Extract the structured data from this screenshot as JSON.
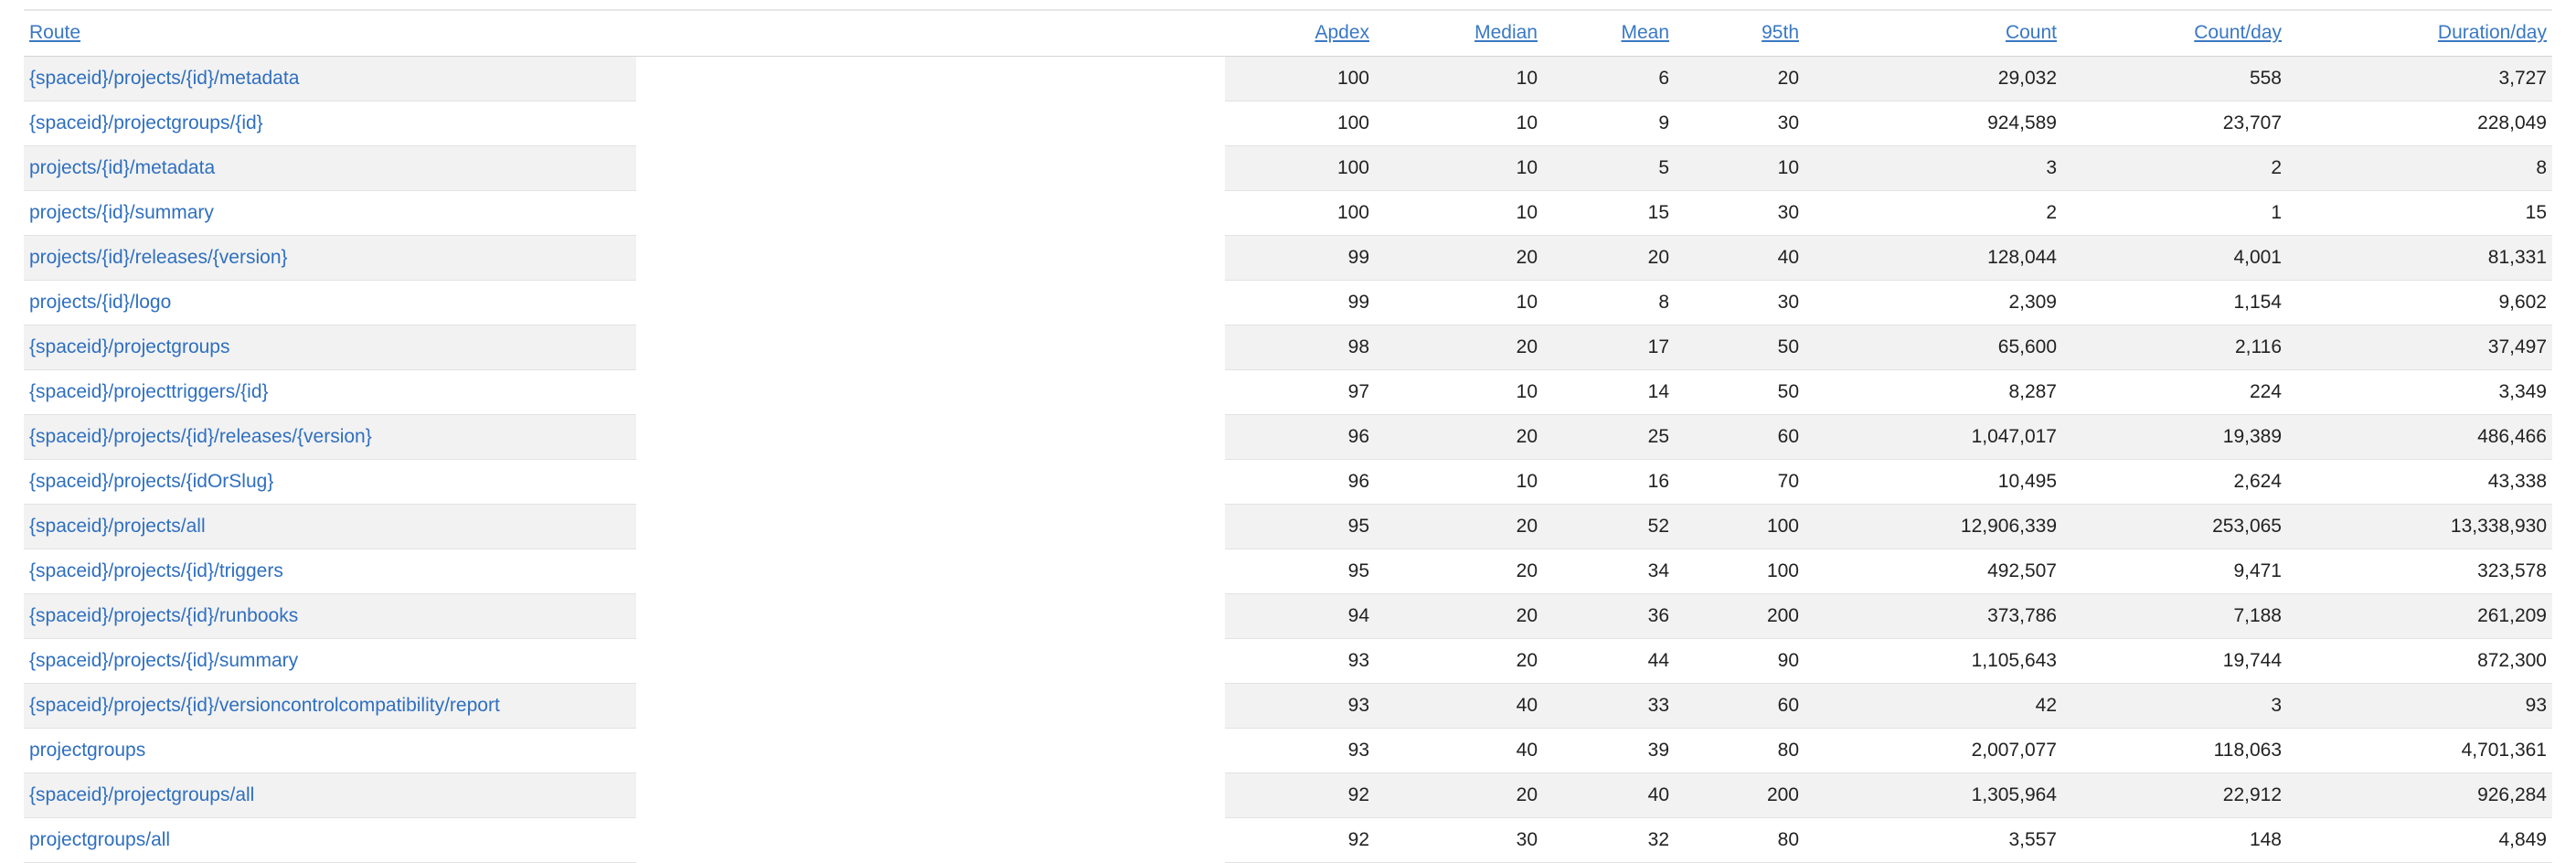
{
  "table": {
    "columns": {
      "route": "Route",
      "apdex": "Apdex",
      "median": "Median",
      "mean": "Mean",
      "p95": "95th",
      "count": "Count",
      "count_per_day": "Count/day",
      "duration_per_day": "Duration/day"
    },
    "rows": [
      {
        "route": "{spaceid}/projects/{id}/metadata",
        "apdex": "100",
        "median": "10",
        "mean": "6",
        "p95": "20",
        "count": "29,032",
        "count_per_day": "558",
        "duration_per_day": "3,727"
      },
      {
        "route": "{spaceid}/projectgroups/{id}",
        "apdex": "100",
        "median": "10",
        "mean": "9",
        "p95": "30",
        "count": "924,589",
        "count_per_day": "23,707",
        "duration_per_day": "228,049"
      },
      {
        "route": "projects/{id}/metadata",
        "apdex": "100",
        "median": "10",
        "mean": "5",
        "p95": "10",
        "count": "3",
        "count_per_day": "2",
        "duration_per_day": "8"
      },
      {
        "route": "projects/{id}/summary",
        "apdex": "100",
        "median": "10",
        "mean": "15",
        "p95": "30",
        "count": "2",
        "count_per_day": "1",
        "duration_per_day": "15"
      },
      {
        "route": "projects/{id}/releases/{version}",
        "apdex": "99",
        "median": "20",
        "mean": "20",
        "p95": "40",
        "count": "128,044",
        "count_per_day": "4,001",
        "duration_per_day": "81,331"
      },
      {
        "route": "projects/{id}/logo",
        "apdex": "99",
        "median": "10",
        "mean": "8",
        "p95": "30",
        "count": "2,309",
        "count_per_day": "1,154",
        "duration_per_day": "9,602"
      },
      {
        "route": "{spaceid}/projectgroups",
        "apdex": "98",
        "median": "20",
        "mean": "17",
        "p95": "50",
        "count": "65,600",
        "count_per_day": "2,116",
        "duration_per_day": "37,497"
      },
      {
        "route": "{spaceid}/projecttriggers/{id}",
        "apdex": "97",
        "median": "10",
        "mean": "14",
        "p95": "50",
        "count": "8,287",
        "count_per_day": "224",
        "duration_per_day": "3,349"
      },
      {
        "route": "{spaceid}/projects/{id}/releases/{version}",
        "apdex": "96",
        "median": "20",
        "mean": "25",
        "p95": "60",
        "count": "1,047,017",
        "count_per_day": "19,389",
        "duration_per_day": "486,466"
      },
      {
        "route": "{spaceid}/projects/{idOrSlug}",
        "apdex": "96",
        "median": "10",
        "mean": "16",
        "p95": "70",
        "count": "10,495",
        "count_per_day": "2,624",
        "duration_per_day": "43,338"
      },
      {
        "route": "{spaceid}/projects/all",
        "apdex": "95",
        "median": "20",
        "mean": "52",
        "p95": "100",
        "count": "12,906,339",
        "count_per_day": "253,065",
        "duration_per_day": "13,338,930"
      },
      {
        "route": "{spaceid}/projects/{id}/triggers",
        "apdex": "95",
        "median": "20",
        "mean": "34",
        "p95": "100",
        "count": "492,507",
        "count_per_day": "9,471",
        "duration_per_day": "323,578"
      },
      {
        "route": "{spaceid}/projects/{id}/runbooks",
        "apdex": "94",
        "median": "20",
        "mean": "36",
        "p95": "200",
        "count": "373,786",
        "count_per_day": "7,188",
        "duration_per_day": "261,209"
      },
      {
        "route": "{spaceid}/projects/{id}/summary",
        "apdex": "93",
        "median": "20",
        "mean": "44",
        "p95": "90",
        "count": "1,105,643",
        "count_per_day": "19,744",
        "duration_per_day": "872,300"
      },
      {
        "route": "{spaceid}/projects/{id}/versioncontrolcompatibility/report",
        "apdex": "93",
        "median": "40",
        "mean": "33",
        "p95": "60",
        "count": "42",
        "count_per_day": "3",
        "duration_per_day": "93"
      },
      {
        "route": "projectgroups",
        "apdex": "93",
        "median": "40",
        "mean": "39",
        "p95": "80",
        "count": "2,007,077",
        "count_per_day": "118,063",
        "duration_per_day": "4,701,361"
      },
      {
        "route": "{spaceid}/projectgroups/all",
        "apdex": "92",
        "median": "20",
        "mean": "40",
        "p95": "200",
        "count": "1,305,964",
        "count_per_day": "22,912",
        "duration_per_day": "926,284"
      },
      {
        "route": "projectgroups/all",
        "apdex": "92",
        "median": "30",
        "mean": "32",
        "p95": "80",
        "count": "3,557",
        "count_per_day": "148",
        "duration_per_day": "4,849"
      }
    ]
  },
  "colors": {
    "link": "#2f6fbf",
    "stripe": "#f2f2f2",
    "text": "#222222"
  }
}
